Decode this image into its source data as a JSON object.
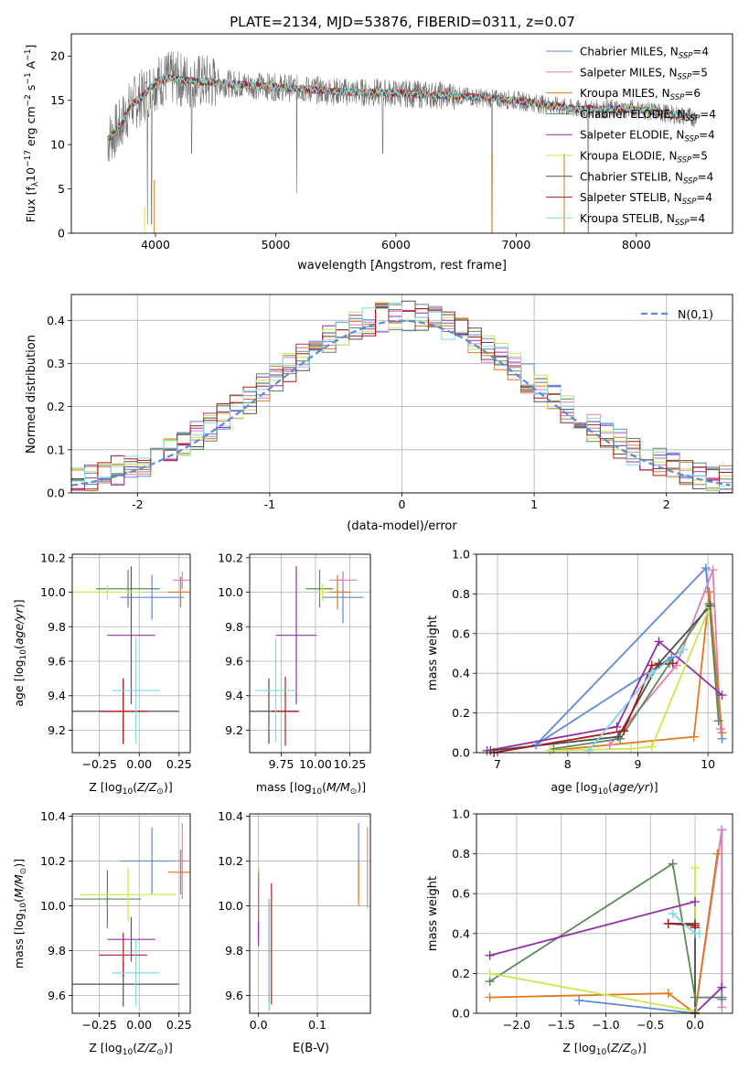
{
  "figure_title": "PLATE=2134, MJD=53876, FIBERID=0311, z=0.07",
  "models": [
    {
      "name": "Chabrier MILES, N_SSP=4",
      "base": "Chabrier MILES, N",
      "sub": "SSP",
      "tail": "=4",
      "color": "#6088d8"
    },
    {
      "name": "Salpeter MILES, N_SSP=5",
      "base": "Salpeter MILES, N",
      "sub": "SSP",
      "tail": "=5",
      "color": "#e07cb6"
    },
    {
      "name": "Kroupa MILES, N_SSP=6",
      "base": "Kroupa MILES, N",
      "sub": "SSP",
      "tail": "=6",
      "color": "#e07820"
    },
    {
      "name": "Chabrier ELODIE, N_SSP=4",
      "base": "Chabrier ELODIE, N",
      "sub": "SSP",
      "tail": "=4",
      "color": "#5a8a5a"
    },
    {
      "name": "Salpeter ELODIE, N_SSP=4",
      "base": "Salpeter ELODIE, N",
      "sub": "SSP",
      "tail": "=4",
      "color": "#9030a8"
    },
    {
      "name": "Kroupa ELODIE, N_SSP=5",
      "base": "Kroupa ELODIE, N",
      "sub": "SSP",
      "tail": "=5",
      "color": "#c8e850"
    },
    {
      "name": "Chabrier STELIB, N_SSP=4",
      "base": "Chabrier STELIB, N",
      "sub": "SSP",
      "tail": "=4",
      "color": "#505050"
    },
    {
      "name": "Salpeter STELIB, N_SSP=4",
      "base": "Salpeter STELIB, N",
      "sub": "SSP",
      "tail": "=4",
      "color": "#b01818"
    },
    {
      "name": "Kroupa STELIB, N_SSP=4",
      "base": "Kroupa STELIB, N",
      "sub": "SSP",
      "tail": "=4",
      "color": "#80d8e0"
    }
  ],
  "chart_data": [
    {
      "id": "spectrum",
      "type": "line",
      "xlabel": "wavelength [Angstrom, rest frame]",
      "ylabel": "Flux [f_λ 10^-17 erg cm^-2 s^-1 A^-1]",
      "xlim": [
        3300,
        8800
      ],
      "ylim": [
        0,
        22.5
      ],
      "xticks": [
        4000,
        5000,
        6000,
        7000,
        8000
      ],
      "yticks": [
        0,
        5,
        10,
        15,
        20
      ],
      "grid": false,
      "legend": "top-right",
      "data_range": [
        3600,
        8500
      ],
      "continuum": [
        [
          3600,
          10.5
        ],
        [
          3700,
          12
        ],
        [
          3800,
          14.5
        ],
        [
          3900,
          15.5
        ],
        [
          4000,
          17
        ],
        [
          4100,
          17.5
        ],
        [
          4300,
          17.2
        ],
        [
          4500,
          17
        ],
        [
          5000,
          16.5
        ],
        [
          5500,
          16
        ],
        [
          6000,
          15.8
        ],
        [
          6500,
          15.5
        ],
        [
          7000,
          15
        ],
        [
          7500,
          14
        ],
        [
          8000,
          14
        ],
        [
          8500,
          13
        ]
      ],
      "absorption_dips": [
        [
          3933,
          1
        ],
        [
          3968,
          1
        ],
        [
          4300,
          9
        ],
        [
          5175,
          4.5
        ],
        [
          5890,
          9
        ],
        [
          6800,
          0
        ],
        [
          7600,
          0
        ]
      ]
    },
    {
      "id": "residual_histogram",
      "type": "bar",
      "xlabel": "(data-model)/error",
      "ylabel": "Normed distribution",
      "xlim": [
        -2.5,
        2.5
      ],
      "ylim": [
        0,
        0.46
      ],
      "xticks": [
        -2,
        -1,
        0,
        1,
        2
      ],
      "yticks": [
        0.0,
        0.1,
        0.2,
        0.3,
        0.4
      ],
      "grid": true,
      "legend": "top-right",
      "reference_curve": {
        "label": "N(0,1)",
        "sigma": 1,
        "color": "#5b8ad6"
      },
      "bin_width": 0.1
    },
    {
      "id": "age_vs_Z",
      "type": "scatter",
      "errorbars": true,
      "xlabel": "Z [log10(Z/Z_sun)]",
      "ylabel": "age [log10(age/yr)]",
      "xlim": [
        -0.42,
        0.32
      ],
      "ylim": [
        9.07,
        10.22
      ],
      "xticks": [
        -0.25,
        0.0,
        0.25
      ],
      "xticklabels": [
        "−0.25",
        "0.00",
        "0.25"
      ],
      "yticks": [
        9.2,
        9.4,
        9.6,
        9.8,
        10.0,
        10.2
      ],
      "grid": true,
      "points": [
        {
          "x": 0.08,
          "y": 9.97,
          "xerr": 0.2,
          "yerr": 0.13
        },
        {
          "x": 0.27,
          "y": 10.07,
          "xerr": 0.06,
          "yerr": 0.05
        },
        {
          "x": 0.26,
          "y": 10.0,
          "xerr": 0.08,
          "yerr": 0.09
        },
        {
          "x": -0.07,
          "y": 10.02,
          "xerr": 0.2,
          "yerr": 0.11
        },
        {
          "x": -0.05,
          "y": 9.75,
          "xerr": 0.15,
          "yerr": 0.4
        },
        {
          "x": -0.2,
          "y": 10.0,
          "xerr": 0.21,
          "yerr": 0.04
        },
        {
          "x": -0.1,
          "y": 9.31,
          "xerr": 0.35,
          "yerr": 0.19
        },
        {
          "x": -0.1,
          "y": 9.31,
          "xerr": 0.15,
          "yerr": 0.19
        },
        {
          "x": -0.02,
          "y": 9.43,
          "xerr": 0.15,
          "yerr": 0.31
        }
      ]
    },
    {
      "id": "age_vs_mass",
      "type": "scatter",
      "errorbars": true,
      "xlabel": "mass [log10(M/M_sun)]",
      "ylabel": "",
      "xlim": [
        9.52,
        10.4
      ],
      "ylim": [
        9.07,
        10.22
      ],
      "xticks": [
        9.75,
        10.0,
        10.25
      ],
      "xticklabels": [
        "9.75",
        "10.00",
        "10.25"
      ],
      "yticks": [
        9.2,
        9.4,
        9.6,
        9.8,
        10.0,
        10.2
      ],
      "grid": true,
      "points": [
        {
          "x": 10.2,
          "y": 9.97,
          "xerr": 0.15,
          "yerr": 0.15
        },
        {
          "x": 10.2,
          "y": 10.07,
          "xerr": 0.1,
          "yerr": 0.05
        },
        {
          "x": 10.16,
          "y": 10.0,
          "xerr": 0.1,
          "yerr": 0.1
        },
        {
          "x": 10.03,
          "y": 10.02,
          "xerr": 0.1,
          "yerr": 0.11
        },
        {
          "x": 9.86,
          "y": 9.75,
          "xerr": 0.15,
          "yerr": 0.4
        },
        {
          "x": 10.05,
          "y": 10.0,
          "xerr": 0.05,
          "yerr": 0.05
        },
        {
          "x": 9.66,
          "y": 9.31,
          "xerr": 0.2,
          "yerr": 0.19
        },
        {
          "x": 9.78,
          "y": 9.31,
          "xerr": 0.1,
          "yerr": 0.2
        },
        {
          "x": 9.71,
          "y": 9.43,
          "xerr": 0.15,
          "yerr": 0.3
        }
      ]
    },
    {
      "id": "massweight_vs_age",
      "type": "line",
      "markers": "+",
      "xlabel": "age [log10(age/yr)]",
      "ylabel": "mass weight",
      "xlim": [
        6.7,
        10.35
      ],
      "ylim": [
        0,
        1.0
      ],
      "xticks": [
        7,
        8,
        9,
        10
      ],
      "yticks": [
        0.0,
        0.2,
        0.4,
        0.6,
        0.8,
        1.0
      ],
      "grid": true,
      "series": [
        [
          [
            9.48,
            0.48
          ],
          [
            7.55,
            0.04
          ],
          [
            9.97,
            0.93
          ],
          [
            10.2,
            0.07
          ]
        ],
        [
          [
            8.6,
            0.04
          ],
          [
            9.55,
            0.44
          ],
          [
            10.07,
            0.92
          ],
          [
            10.18,
            0.12
          ]
        ],
        [
          [
            7.75,
            0.01
          ],
          [
            9.8,
            0.08
          ],
          [
            10.02,
            0.81
          ],
          [
            10.2,
            0.1
          ]
        ],
        [
          [
            7.8,
            0.02
          ],
          [
            8.75,
            0.07
          ],
          [
            9.45,
            0.45
          ],
          [
            10.02,
            0.75
          ],
          [
            10.15,
            0.16
          ]
        ],
        [
          [
            6.85,
            0.01
          ],
          [
            8.7,
            0.13
          ],
          [
            9.3,
            0.56
          ],
          [
            10.2,
            0.29
          ]
        ],
        [
          [
            7.75,
            0.01
          ],
          [
            8.9,
            0.02
          ],
          [
            9.2,
            0.03
          ],
          [
            10.02,
            0.73
          ]
        ],
        [
          [
            6.9,
            0.01
          ],
          [
            8.72,
            0.08
          ],
          [
            9.3,
            0.45
          ],
          [
            10.03,
            0.74
          ]
        ],
        [
          [
            6.95,
            0.0
          ],
          [
            8.8,
            0.11
          ],
          [
            9.2,
            0.44
          ],
          [
            9.5,
            0.45
          ]
        ],
        [
          [
            8.3,
            0.01
          ],
          [
            9.2,
            0.4
          ],
          [
            9.65,
            0.52
          ]
        ]
      ]
    },
    {
      "id": "mass_vs_Z",
      "type": "scatter",
      "errorbars": true,
      "xlabel": "Z [log10(Z/Z_sun)]",
      "ylabel": "mass [log10(M/M_sun)]",
      "xlim": [
        -0.42,
        0.32
      ],
      "ylim": [
        9.52,
        10.41
      ],
      "xticks": [
        -0.25,
        0.0,
        0.25
      ],
      "xticklabels": [
        "−0.25",
        "0.00",
        "0.25"
      ],
      "yticks": [
        9.6,
        9.8,
        10.0,
        10.2,
        10.4
      ],
      "grid": true,
      "points": [
        {
          "x": 0.08,
          "y": 10.2,
          "xerr": 0.2,
          "yerr": 0.15
        },
        {
          "x": 0.27,
          "y": 10.2,
          "xerr": 0.05,
          "yerr": 0.17
        },
        {
          "x": 0.26,
          "y": 10.15,
          "xerr": 0.08,
          "yerr": 0.1
        },
        {
          "x": -0.2,
          "y": 10.03,
          "xerr": 0.21,
          "yerr": 0.13
        },
        {
          "x": -0.05,
          "y": 9.85,
          "xerr": 0.15,
          "yerr": 0.1
        },
        {
          "x": -0.07,
          "y": 10.05,
          "xerr": 0.3,
          "yerr": 0.12
        },
        {
          "x": -0.1,
          "y": 9.65,
          "xerr": 0.35,
          "yerr": 0.1
        },
        {
          "x": -0.1,
          "y": 9.78,
          "xerr": 0.15,
          "yerr": 0.1
        },
        {
          "x": -0.02,
          "y": 9.7,
          "xerr": 0.15,
          "yerr": 0.15
        }
      ]
    },
    {
      "id": "mass_vs_EBV",
      "type": "scatter",
      "errorbars": true,
      "xlabel": "E(B-V)",
      "ylabel": "",
      "xlim": [
        -0.015,
        0.19
      ],
      "ylim": [
        9.52,
        10.41
      ],
      "xticks": [
        0.0,
        0.1
      ],
      "xticklabels": [
        "0.0",
        "0.1"
      ],
      "yticks": [
        9.6,
        9.8,
        10.0,
        10.2,
        10.4
      ],
      "grid": true,
      "points": [
        {
          "x": 0.17,
          "y": 10.2,
          "xerr": 0,
          "yerr": 0.17
        },
        {
          "x": 0.185,
          "y": 10.17,
          "xerr": 0,
          "yerr": 0.18
        },
        {
          "x": 0.17,
          "y": 10.1,
          "xerr": 0,
          "yerr": 0.1
        },
        {
          "x": 0.0,
          "y": 10.0,
          "xerr": 0,
          "yerr": 0.15
        },
        {
          "x": 0.0,
          "y": 9.97,
          "xerr": 0,
          "yerr": 0.15
        },
        {
          "x": 0.001,
          "y": 10.05,
          "xerr": 0,
          "yerr": 0.12
        },
        {
          "x": 0.018,
          "y": 9.8,
          "xerr": 0,
          "yerr": 0.23
        },
        {
          "x": 0.022,
          "y": 9.83,
          "xerr": 0,
          "yerr": 0.27
        },
        {
          "x": 0.018,
          "y": 9.78,
          "xerr": 0,
          "yerr": 0.25
        }
      ]
    },
    {
      "id": "massweight_vs_Z",
      "type": "line",
      "markers": "+",
      "xlabel": "Z [log10(Z/Z_sun)]",
      "ylabel": "mass weight",
      "xlim": [
        -2.45,
        0.42
      ],
      "ylim": [
        0,
        1.0
      ],
      "xticks": [
        -2.0,
        -1.5,
        -1.0,
        -0.5,
        0.0
      ],
      "xticklabels": [
        "−2.0",
        "−1.5",
        "−1.0",
        "−0.5",
        "0.0"
      ],
      "yticks": [
        0.0,
        0.2,
        0.4,
        0.6,
        0.8,
        1.0
      ],
      "grid": true,
      "series": [
        [
          [
            -1.3,
            0.065
          ],
          [
            0.0,
            0.0
          ],
          [
            0.3,
            0.92
          ],
          [
            0.3,
            0.07
          ]
        ],
        [
          [
            0.0,
            0.43
          ],
          [
            0.0,
            0.0
          ],
          [
            0.3,
            0.92
          ],
          [
            0.3,
            0.03
          ]
        ],
        [
          [
            -2.3,
            0.08
          ],
          [
            -0.3,
            0.1
          ],
          [
            0.0,
            0.0
          ],
          [
            0.25,
            0.8
          ]
        ],
        [
          [
            -2.3,
            0.16
          ],
          [
            -0.25,
            0.75
          ],
          [
            0.0,
            0.08
          ],
          [
            0.3,
            0.08
          ]
        ],
        [
          [
            -2.3,
            0.29
          ],
          [
            0.0,
            0.56
          ],
          [
            0.0,
            0.0
          ],
          [
            0.3,
            0.13
          ]
        ],
        [
          [
            -2.3,
            0.2
          ],
          [
            0.0,
            0.01
          ],
          [
            0.0,
            0.73
          ]
        ],
        [
          [
            -0.3,
            0.45
          ],
          [
            0.0,
            0.45
          ],
          [
            0.0,
            0.0
          ]
        ],
        [
          [
            -0.3,
            0.45
          ],
          [
            0.0,
            0.44
          ],
          [
            0.0,
            0.43
          ]
        ],
        [
          [
            -0.25,
            0.5
          ],
          [
            0.0,
            0.4
          ],
          [
            0.05,
            0.4
          ]
        ]
      ]
    }
  ]
}
